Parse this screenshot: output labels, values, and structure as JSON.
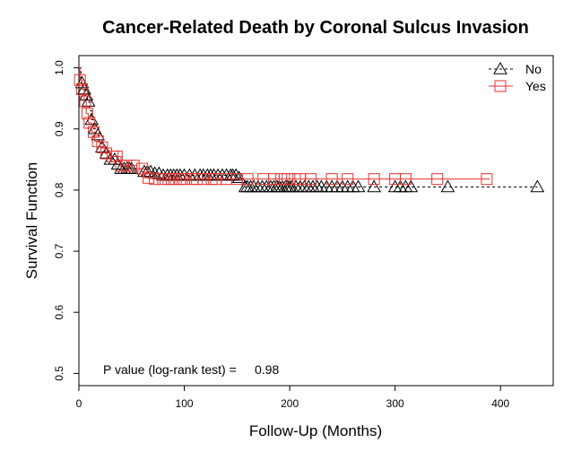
{
  "chart_data": {
    "type": "line",
    "title": "Cancer-Related Death by Coronal Sulcus Invasion",
    "xlabel": "Follow-Up (Months)",
    "ylabel": "Survival Function",
    "xlim": [
      0,
      450
    ],
    "ylim": [
      0.48,
      1.02
    ],
    "x_ticks": [
      0,
      100,
      200,
      300,
      400
    ],
    "y_ticks": [
      0.5,
      0.6,
      0.7,
      0.8,
      0.9,
      1.0
    ],
    "x_tick_labels": [
      "0",
      "100",
      "200",
      "300",
      "400"
    ],
    "y_tick_labels": [
      "0.5",
      "0.6",
      "0.7",
      "0.8",
      "0.9",
      "1.0"
    ],
    "grid": false,
    "legend_position": "top-right",
    "annotation_label": "P value (log-rank test) =",
    "annotation_value": "0.98",
    "series": [
      {
        "name": "No",
        "color": "#000000",
        "line_style": "dashed",
        "marker": "triangle",
        "steps": [
          [
            0,
            1.0
          ],
          [
            2,
            0.975
          ],
          [
            4,
            0.965
          ],
          [
            6,
            0.955
          ],
          [
            8,
            0.945
          ],
          [
            10,
            0.93
          ],
          [
            12,
            0.915
          ],
          [
            14,
            0.9
          ],
          [
            16,
            0.89
          ],
          [
            19,
            0.88
          ],
          [
            22,
            0.87
          ],
          [
            25,
            0.86
          ],
          [
            30,
            0.85
          ],
          [
            35,
            0.842
          ],
          [
            40,
            0.835
          ],
          [
            60,
            0.83
          ],
          [
            70,
            0.827
          ],
          [
            80,
            0.824
          ],
          [
            150,
            0.82
          ],
          [
            155,
            0.805
          ],
          [
            435,
            0.805
          ]
        ],
        "censored_x": [
          3,
          5,
          7,
          9,
          12,
          15,
          18,
          22,
          26,
          30,
          34,
          37,
          40,
          43,
          46,
          48,
          50,
          62,
          65,
          68,
          72,
          76,
          80,
          84,
          87,
          90,
          93,
          96,
          100,
          105,
          110,
          115,
          118,
          122,
          125,
          128,
          132,
          136,
          140,
          144,
          146,
          149,
          152,
          158,
          160,
          163,
          166,
          170,
          174,
          178,
          182,
          185,
          188,
          190,
          193,
          196,
          198,
          200,
          202,
          206,
          210,
          214,
          218,
          222,
          226,
          230,
          235,
          240,
          245,
          250,
          255,
          260,
          265,
          280,
          300,
          305,
          310,
          315,
          350,
          435
        ]
      },
      {
        "name": "Yes",
        "color": "#e8322e",
        "line_style": "solid",
        "marker": "square",
        "steps": [
          [
            0,
            1.0
          ],
          [
            1,
            0.98
          ],
          [
            3,
            0.965
          ],
          [
            5,
            0.945
          ],
          [
            7,
            0.925
          ],
          [
            9,
            0.91
          ],
          [
            12,
            0.895
          ],
          [
            15,
            0.88
          ],
          [
            20,
            0.87
          ],
          [
            25,
            0.86
          ],
          [
            30,
            0.855
          ],
          [
            40,
            0.84
          ],
          [
            55,
            0.835
          ],
          [
            62,
            0.82
          ],
          [
            70,
            0.818
          ],
          [
            390,
            0.818
          ]
        ],
        "censored_x": [
          1,
          3,
          6,
          8,
          10,
          14,
          18,
          22,
          26,
          32,
          36,
          40,
          45,
          52,
          60,
          66,
          72,
          80,
          85,
          88,
          92,
          96,
          100,
          108,
          112,
          118,
          126,
          130,
          140,
          150,
          160,
          175,
          185,
          192,
          198,
          205,
          210,
          220,
          240,
          255,
          280,
          300,
          310,
          340,
          387
        ]
      }
    ]
  }
}
